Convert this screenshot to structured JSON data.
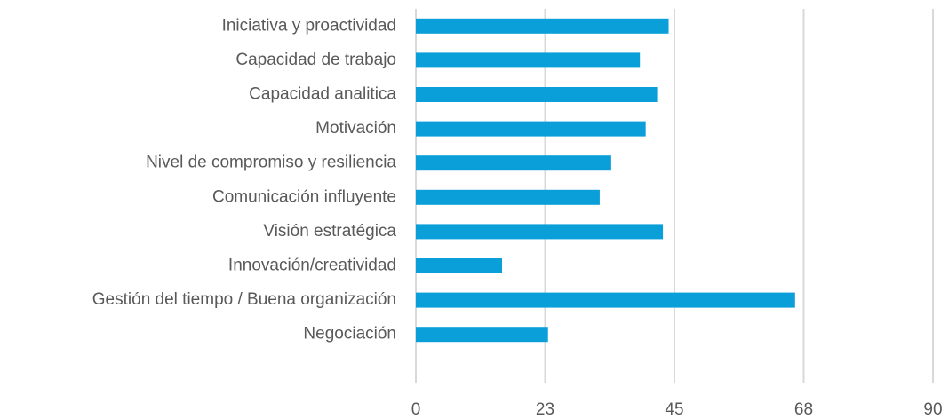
{
  "chart_data": {
    "type": "barh",
    "categories": [
      "Iniciativa y proactividad",
      "Capacidad de trabajo",
      "Capacidad analitica",
      "Motivación",
      "Nivel de compromiso y resiliencia",
      "Comunicación influyente",
      "Visión estratégica",
      "Innovación/creatividad",
      "Gestión del tiempo / Buena organización",
      "Negociación"
    ],
    "values": [
      44,
      39,
      42,
      40,
      34,
      32,
      43,
      15,
      66,
      23
    ],
    "color": "#0a9fd8",
    "xlim": [
      0,
      90
    ],
    "xticks": [
      0,
      {
        "value": 22.5,
        "label": "23"
      },
      45,
      {
        "value": 67.5,
        "label": "68"
      },
      90
    ],
    "grid": true
  }
}
